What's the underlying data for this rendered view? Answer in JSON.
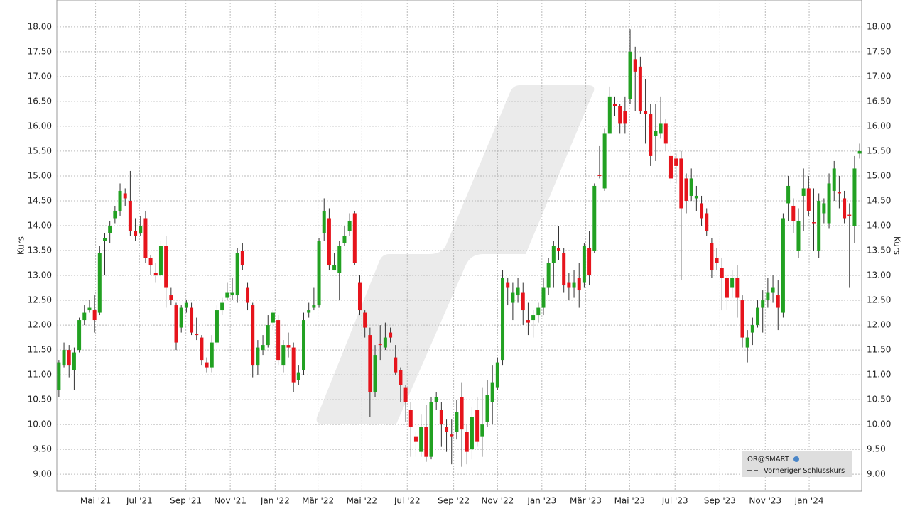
{
  "chart_data": {
    "type": "candlestick",
    "ylabel": "Kurs",
    "y2label": "Kurs",
    "legend": {
      "name": "OR@SMART",
      "line": "Vorheriger Schlusskurs"
    },
    "legend_corner": "bottom-right",
    "up_color": "#22a122",
    "down_color": "#e6141c",
    "grid": true,
    "ylim": [
      8.66,
      18.54
    ],
    "yticks": [
      {
        "value": 9,
        "label": "9.00"
      },
      {
        "value": 9.5,
        "label": "9.50"
      },
      {
        "value": 10,
        "label": "10.00"
      },
      {
        "value": 10.5,
        "label": "10.50"
      },
      {
        "value": 11,
        "label": "11.00"
      },
      {
        "value": 11.5,
        "label": "11.50"
      },
      {
        "value": 12,
        "label": "12.00"
      },
      {
        "value": 12.5,
        "label": "12.50"
      },
      {
        "value": 13,
        "label": "13.00"
      },
      {
        "value": 13.5,
        "label": "13.50"
      },
      {
        "value": 14,
        "label": "14.00"
      },
      {
        "value": 14.5,
        "label": "14.50"
      },
      {
        "value": 15,
        "label": "15.00"
      },
      {
        "value": 15.5,
        "label": "15.50"
      },
      {
        "value": 16,
        "label": "16.00"
      },
      {
        "value": 16.5,
        "label": "16.50"
      },
      {
        "value": 17,
        "label": "17.00"
      },
      {
        "value": 17.5,
        "label": "17.50"
      },
      {
        "value": 18,
        "label": "18.00"
      }
    ],
    "xlim": [
      -0.4,
      157.4
    ],
    "xticks": [
      {
        "value": 7.2,
        "label": "Mai '21"
      },
      {
        "value": 15.8,
        "label": "Jul '21"
      },
      {
        "value": 24.9,
        "label": "Sep '21"
      },
      {
        "value": 33.6,
        "label": "Nov '21"
      },
      {
        "value": 42.4,
        "label": "Jan '22"
      },
      {
        "value": 50.8,
        "label": "Mär '22"
      },
      {
        "value": 59.4,
        "label": "Mai '22"
      },
      {
        "value": 68.3,
        "label": "Jul '22"
      },
      {
        "value": 77.4,
        "label": "Sep '22"
      },
      {
        "value": 86.0,
        "label": "Nov '22"
      },
      {
        "value": 94.7,
        "label": "Jan '23"
      },
      {
        "value": 103.3,
        "label": "Mär '23"
      },
      {
        "value": 111.9,
        "label": "Mai '23"
      },
      {
        "value": 120.8,
        "label": "Jul '23"
      },
      {
        "value": 129.6,
        "label": "Sep '23"
      },
      {
        "value": 138.5,
        "label": "Nov '23"
      },
      {
        "value": 147.1,
        "label": "Jan '24"
      }
    ],
    "x": [
      0,
      1,
      2,
      3,
      4,
      5,
      6,
      7,
      8,
      9,
      10,
      11,
      12,
      13,
      14,
      15,
      16,
      17,
      18,
      19,
      20,
      21,
      22,
      23,
      24,
      25,
      26,
      27,
      28,
      29,
      30,
      31,
      32,
      33,
      34,
      35,
      36,
      37,
      38,
      39,
      40,
      41,
      42,
      43,
      44,
      45,
      46,
      47,
      48,
      49,
      50,
      51,
      52,
      53,
      54,
      55,
      56,
      57,
      58,
      59,
      60,
      61,
      62,
      63,
      64,
      65,
      66,
      67,
      68,
      69,
      70,
      71,
      72,
      73,
      74,
      75,
      76,
      77,
      78,
      79,
      80,
      81,
      82,
      83,
      84,
      85,
      86,
      87,
      88,
      89,
      90,
      91,
      92,
      93,
      94,
      95,
      96,
      97,
      98,
      99,
      100,
      101,
      102,
      103,
      104,
      105,
      106,
      107,
      108,
      109,
      110,
      111,
      112,
      113,
      114,
      115,
      116,
      117,
      118,
      119,
      120,
      121,
      122,
      123,
      124,
      125,
      126,
      127,
      128,
      129,
      130,
      131,
      132,
      133,
      134,
      135,
      136,
      137,
      138,
      139,
      140,
      141,
      142,
      143,
      144,
      145,
      146,
      147,
      148,
      149,
      150,
      151,
      152,
      153,
      154,
      155,
      156,
      157
    ],
    "open": [
      10.7,
      11.2,
      11.5,
      11.1,
      11.5,
      12.1,
      12.3,
      12.3,
      12.25,
      13.7,
      13.85,
      14.15,
      14.3,
      14.65,
      14.5,
      13.9,
      13.85,
      14.15,
      13.35,
      13.05,
      13.0,
      13.6,
      12.6,
      12.4,
      11.95,
      12.35,
      12.35,
      11.82,
      11.75,
      11.25,
      11.15,
      11.65,
      12.3,
      12.55,
      12.6,
      12.6,
      13.5,
      12.75,
      12.4,
      11.2,
      11.5,
      11.6,
      12.05,
      12.1,
      11.2,
      11.6,
      11.55,
      10.9,
      11.1,
      12.25,
      12.35,
      12.4,
      13.85,
      14.15,
      13.1,
      13.05,
      13.65,
      13.9,
      14.25,
      12.85,
      12.25,
      11.8,
      10.65,
      11.62,
      11.55,
      11.85,
      11.35,
      11.1,
      10.75,
      10.3,
      9.75,
      9.45,
      9.95,
      9.35,
      10.45,
      10.3,
      9.95,
      9.8,
      9.85,
      10.55,
      9.85,
      9.5,
      10.3,
      9.75,
      10.05,
      10.45,
      10.75,
      11.3,
      12.85,
      12.45,
      12.6,
      12.65,
      12.1,
      12.1,
      12.2,
      12.35,
      12.75,
      13.25,
      13.55,
      13.45,
      12.85,
      12.75,
      12.95,
      12.85,
      13.55,
      13.5,
      15.02,
      14.75,
      15.85,
      16.45,
      16.4,
      16.3,
      16.55,
      17.35,
      17.2,
      16.3,
      16.25,
      15.8,
      15.85,
      16.05,
      15.4,
      15.35,
      15.35,
      14.95,
      14.6,
      14.55,
      14.45,
      14.25,
      13.65,
      13.35,
      13.15,
      12.95,
      12.75,
      12.95,
      12.5,
      11.55,
      11.85,
      12.0,
      12.35,
      12.5,
      12.65,
      12.6,
      12.25,
      14.45,
      14.4,
      13.5,
      14.6,
      14.75,
      14.07,
      13.5,
      14.25,
      14.05,
      14.7,
      14.67,
      14.55,
      14.22,
      14.0,
      15.45
    ],
    "high": [
      11.3,
      11.65,
      11.6,
      11.55,
      12.15,
      12.4,
      12.5,
      12.6,
      13.6,
      13.85,
      14.1,
      14.4,
      14.85,
      14.75,
      15.1,
      14.15,
      14.2,
      14.3,
      13.4,
      13.25,
      13.7,
      13.8,
      12.75,
      12.45,
      12.4,
      12.5,
      12.45,
      12.15,
      11.8,
      11.35,
      11.8,
      12.4,
      12.55,
      12.85,
      12.95,
      13.55,
      13.65,
      12.85,
      12.45,
      11.7,
      11.8,
      12.2,
      12.3,
      12.2,
      11.7,
      11.85,
      11.65,
      11.2,
      12.25,
      12.45,
      12.75,
      13.75,
      14.55,
      14.35,
      13.45,
      13.7,
      14.0,
      14.25,
      14.3,
      13.0,
      12.3,
      11.95,
      11.6,
      12.0,
      12.05,
      11.95,
      11.6,
      11.15,
      10.8,
      10.45,
      9.85,
      10.2,
      10.4,
      10.55,
      10.65,
      10.45,
      10.1,
      10.1,
      10.5,
      10.85,
      10.0,
      10.35,
      10.55,
      10.75,
      10.9,
      11.2,
      11.35,
      13.1,
      12.95,
      12.85,
      12.95,
      12.85,
      12.45,
      12.3,
      12.45,
      12.95,
      13.35,
      13.7,
      14.0,
      13.55,
      13.05,
      13.1,
      13.25,
      13.65,
      13.9,
      14.85,
      15.6,
      15.95,
      16.8,
      16.6,
      16.45,
      16.6,
      17.95,
      17.6,
      17.4,
      16.95,
      16.45,
      16.45,
      16.6,
      16.15,
      15.65,
      15.45,
      15.5,
      15.05,
      15.15,
      14.8,
      14.6,
      14.35,
      13.75,
      13.55,
      13.35,
      13.0,
      13.1,
      13.2,
      12.6,
      11.9,
      12.15,
      12.5,
      12.7,
      12.95,
      13.0,
      12.9,
      14.25,
      15.0,
      14.55,
      14.35,
      15.15,
      15.0,
      14.75,
      14.65,
      14.55,
      15.05,
      15.3,
      15.0,
      14.7,
      14.45,
      15.4,
      15.65
    ],
    "low": [
      10.55,
      11.15,
      10.95,
      10.7,
      11.45,
      12.0,
      12.25,
      11.85,
      12.2,
      13.0,
      13.65,
      14.05,
      14.2,
      14.4,
      13.8,
      13.7,
      13.8,
      13.25,
      13.0,
      12.85,
      12.9,
      12.35,
      12.4,
      11.5,
      11.85,
      12.25,
      11.8,
      11.7,
      11.2,
      11.05,
      11.05,
      11.6,
      12.2,
      12.5,
      12.5,
      12.45,
      13.1,
      12.3,
      10.95,
      11.0,
      11.4,
      11.55,
      11.9,
      11.2,
      11.05,
      11.35,
      10.65,
      10.8,
      11.0,
      12.15,
      12.3,
      12.35,
      13.7,
      13.1,
      13.1,
      12.5,
      13.6,
      13.8,
      13.2,
      12.2,
      11.75,
      10.15,
      10.55,
      11.3,
      11.5,
      11.65,
      11.0,
      10.45,
      10.05,
      9.35,
      9.35,
      9.35,
      9.25,
      9.3,
      10.3,
      9.55,
      9.45,
      9.2,
      9.7,
      9.15,
      9.2,
      9.3,
      9.55,
      9.35,
      9.95,
      10.0,
      10.7,
      11.2,
      12.4,
      12.1,
      12.45,
      12.0,
      11.8,
      11.75,
      12.05,
      12.2,
      12.6,
      12.75,
      13.3,
      12.65,
      12.5,
      12.55,
      12.35,
      12.75,
      12.8,
      13.45,
      14.95,
      14.7,
      15.85,
      16.2,
      15.85,
      15.85,
      16.45,
      16.3,
      16.25,
      15.65,
      15.2,
      15.3,
      15.75,
      15.5,
      14.85,
      14.85,
      12.9,
      14.25,
      14.5,
      14.3,
      14.0,
      13.8,
      12.95,
      13.1,
      12.3,
      12.3,
      12.55,
      12.15,
      11.55,
      11.25,
      11.6,
      11.95,
      11.85,
      12.35,
      12.45,
      11.9,
      12.15,
      14.1,
      13.85,
      13.35,
      13.9,
      14.2,
      13.5,
      13.35,
      14.05,
      13.95,
      14.5,
      14.35,
      14.05,
      12.75,
      13.65,
      15.35
    ],
    "close": [
      11.25,
      11.5,
      11.2,
      11.45,
      12.1,
      12.25,
      12.35,
      12.1,
      13.45,
      13.75,
      14.0,
      14.3,
      14.7,
      14.55,
      13.9,
      13.8,
      14.0,
      13.35,
      13.2,
      13.0,
      13.6,
      12.75,
      12.5,
      11.65,
      12.35,
      12.45,
      11.85,
      11.8,
      11.3,
      11.15,
      11.65,
      12.3,
      12.45,
      12.65,
      12.65,
      13.45,
      13.2,
      12.45,
      11.2,
      11.55,
      11.6,
      12.0,
      12.25,
      11.3,
      11.6,
      11.55,
      10.85,
      11.05,
      12.1,
      12.3,
      12.4,
      13.7,
      14.3,
      13.2,
      13.2,
      13.6,
      13.8,
      14.1,
      13.25,
      12.3,
      11.95,
      10.65,
      11.4,
      11.6,
      11.75,
      11.75,
      11.05,
      10.8,
      10.45,
      9.95,
      9.65,
      9.95,
      9.35,
      10.45,
      10.55,
      10.0,
      9.85,
      9.75,
      10.25,
      9.9,
      9.45,
      10.15,
      9.65,
      10.0,
      10.6,
      10.85,
      11.25,
      12.95,
      12.75,
      12.65,
      12.75,
      12.3,
      12.05,
      12.2,
      12.35,
      12.75,
      13.25,
      13.6,
      13.5,
      12.8,
      12.75,
      12.85,
      12.7,
      13.6,
      13.0,
      14.8,
      15.0,
      15.85,
      16.6,
      16.4,
      16.05,
      16.05,
      17.5,
      17.1,
      16.3,
      16.25,
      15.4,
      15.9,
      16.05,
      15.65,
      14.95,
      15.2,
      14.35,
      14.5,
      14.95,
      14.6,
      14.15,
      13.9,
      13.1,
      13.25,
      12.95,
      12.55,
      12.95,
      12.55,
      11.75,
      11.75,
      12.0,
      12.35,
      12.5,
      12.65,
      12.75,
      12.35,
      14.15,
      14.8,
      14.1,
      14.1,
      14.75,
      14.3,
      14.05,
      14.5,
      14.45,
      14.85,
      15.15,
      14.65,
      14.15,
      14.2,
      15.15,
      15.5
    ]
  }
}
